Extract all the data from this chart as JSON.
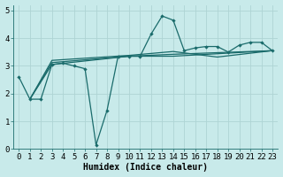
{
  "xlabel": "Humidex (Indice chaleur)",
  "bg_color": "#c8eaea",
  "grid_color": "#aed4d4",
  "line_color": "#1a6b6b",
  "xlim": [
    -0.5,
    23.5
  ],
  "ylim": [
    0,
    5.2
  ],
  "yticks": [
    0,
    1,
    2,
    3,
    4,
    5
  ],
  "xticks": [
    0,
    1,
    2,
    3,
    4,
    5,
    6,
    7,
    8,
    9,
    10,
    11,
    12,
    13,
    14,
    15,
    16,
    17,
    18,
    19,
    20,
    21,
    22,
    23
  ],
  "series1_x": [
    0,
    1,
    2,
    3,
    4,
    5,
    6,
    7,
    8,
    9,
    10,
    11,
    12,
    13,
    14,
    15,
    16,
    17,
    18,
    19,
    20,
    21,
    22,
    23
  ],
  "series1_y": [
    2.6,
    1.8,
    1.8,
    3.05,
    3.1,
    3.0,
    2.9,
    0.15,
    1.4,
    3.35,
    3.35,
    3.35,
    4.15,
    4.8,
    4.65,
    3.55,
    3.65,
    3.7,
    3.7,
    3.5,
    3.75,
    3.85,
    3.85,
    3.55
  ],
  "series2_x": [
    1,
    3,
    10,
    14,
    23
  ],
  "series2_y": [
    1.8,
    3.05,
    3.35,
    3.35,
    3.55
  ],
  "series3_x": [
    1,
    3,
    10,
    14,
    23
  ],
  "series3_y": [
    1.8,
    3.12,
    3.35,
    3.42,
    3.55
  ],
  "series4_x": [
    1,
    3,
    10,
    14,
    18,
    23
  ],
  "series4_y": [
    1.8,
    3.2,
    3.38,
    3.52,
    3.32,
    3.55
  ],
  "font_size": 6.5
}
